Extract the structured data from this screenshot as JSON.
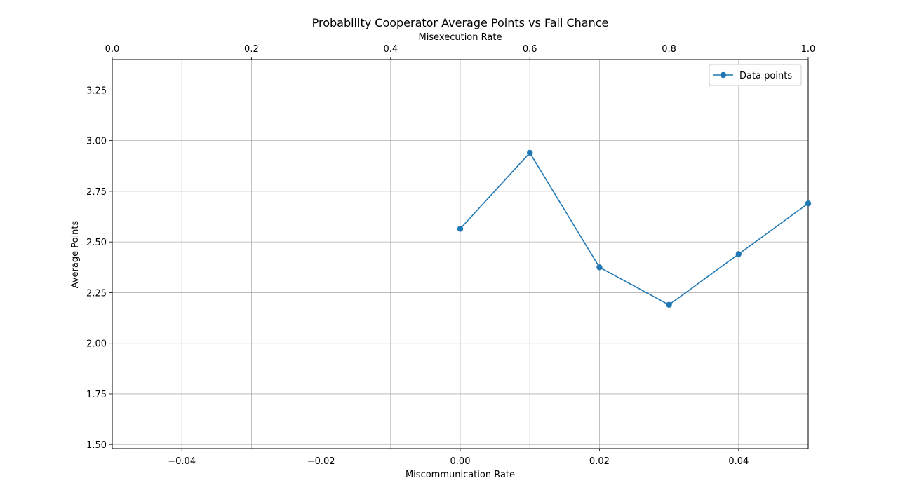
{
  "chart_data": {
    "type": "line",
    "title": "Probability Cooperator Average Points vs Fail Chance",
    "xlabel": "Miscommunication Rate",
    "ylabel": "Average Points",
    "top_xlabel": "Misexecution Rate",
    "xlim": [
      -0.05,
      0.05
    ],
    "ylim": [
      1.48,
      3.4
    ],
    "top_xlim": [
      0.0,
      1.0
    ],
    "x_ticks": [
      -0.04,
      -0.02,
      0.0,
      0.02,
      0.04
    ],
    "x_tick_labels": [
      "−0.04",
      "−0.02",
      "0.00",
      "0.02",
      "0.04"
    ],
    "y_ticks": [
      1.5,
      1.75,
      2.0,
      2.25,
      2.5,
      2.75,
      3.0,
      3.25
    ],
    "y_tick_labels": [
      "1.50",
      "1.75",
      "2.00",
      "2.25",
      "2.50",
      "2.75",
      "3.00",
      "3.25"
    ],
    "top_x_ticks": [
      0.0,
      0.2,
      0.4,
      0.6,
      0.8,
      1.0
    ],
    "top_x_tick_labels": [
      "0.0",
      "0.2",
      "0.4",
      "0.6",
      "0.8",
      "1.0"
    ],
    "grid": true,
    "legend_position": "top-right",
    "series": [
      {
        "name": "Data points",
        "color": "#1f77b4",
        "marker": "circle",
        "x": [
          0.0,
          0.01,
          0.02,
          0.03,
          0.04,
          0.05
        ],
        "y": [
          2.565,
          2.94,
          2.375,
          2.19,
          2.44,
          2.69
        ]
      }
    ]
  }
}
